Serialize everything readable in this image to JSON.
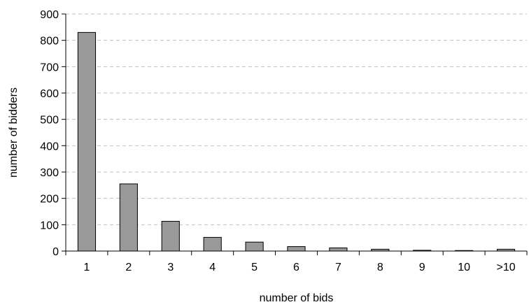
{
  "chart_data": {
    "type": "bar",
    "title": "",
    "xlabel": "number of bids",
    "ylabel": "number of bidders",
    "categories": [
      "1",
      "2",
      "3",
      "4",
      "5",
      "6",
      "7",
      "8",
      "9",
      "10",
      ">10"
    ],
    "values": [
      830,
      255,
      113,
      52,
      34,
      17,
      12,
      7,
      3,
      2,
      7
    ],
    "ylim": [
      0,
      900
    ],
    "yticks": [
      0,
      100,
      200,
      300,
      400,
      500,
      600,
      700,
      800,
      900
    ],
    "grid": "horizontal dashed",
    "bar_color": "#999999",
    "bar_edge_color": "#000000",
    "gridline_color": "#c0c0c0"
  }
}
